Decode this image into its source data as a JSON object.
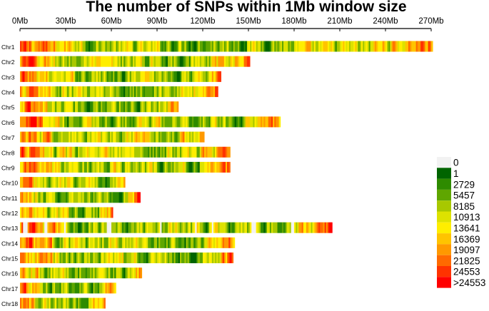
{
  "chart_data": {
    "type": "heatmap",
    "title": "The number of SNPs within 1Mb window size",
    "x_unit": "Mb",
    "xlim": [
      0,
      270
    ],
    "x_ticks": [
      {
        "value": 0,
        "label": "0Mb"
      },
      {
        "value": 30,
        "label": "30Mb"
      },
      {
        "value": 60,
        "label": "60Mb"
      },
      {
        "value": 90,
        "label": "90Mb"
      },
      {
        "value": 120,
        "label": "120Mb"
      },
      {
        "value": 150,
        "label": "150Mb"
      },
      {
        "value": 180,
        "label": "180Mb"
      },
      {
        "value": 210,
        "label": "210Mb"
      },
      {
        "value": 240,
        "label": "240Mb"
      },
      {
        "value": 270,
        "label": "270Mb"
      }
    ],
    "window_size_mb": 1,
    "chromosomes": [
      {
        "name": "Chr1",
        "length_mb": 271
      },
      {
        "name": "Chr2",
        "length_mb": 151
      },
      {
        "name": "Chr3",
        "length_mb": 132
      },
      {
        "name": "Chr4",
        "length_mb": 130
      },
      {
        "name": "Chr5",
        "length_mb": 104
      },
      {
        "name": "Chr6",
        "length_mb": 171
      },
      {
        "name": "Chr7",
        "length_mb": 121
      },
      {
        "name": "Chr8",
        "length_mb": 138
      },
      {
        "name": "Chr9",
        "length_mb": 138
      },
      {
        "name": "Chr10",
        "length_mb": 69
      },
      {
        "name": "Chr11",
        "length_mb": 79
      },
      {
        "name": "Chr12",
        "length_mb": 61
      },
      {
        "name": "Chr13",
        "length_mb": 205
      },
      {
        "name": "Chr14",
        "length_mb": 141
      },
      {
        "name": "Chr15",
        "length_mb": 140
      },
      {
        "name": "Chr16",
        "length_mb": 80
      },
      {
        "name": "Chr17",
        "length_mb": 63
      },
      {
        "name": "Chr18",
        "length_mb": 56
      }
    ],
    "gap_windows": {
      "Chr13": [
        2,
        3,
        4,
        16,
        17,
        29,
        57,
        58,
        59,
        92,
        115,
        126,
        152,
        153,
        154,
        178,
        179
      ]
    },
    "legend": {
      "labels": [
        "0",
        "1",
        "2729",
        "5457",
        "8185",
        "10913",
        "13641",
        "16369",
        "19097",
        "21825",
        "24553",
        ">24553"
      ],
      "colors": [
        "#f2f2f2",
        "#006400",
        "#2e8b00",
        "#5fa600",
        "#a8c800",
        "#dde200",
        "#ffee00",
        "#ffc400",
        "#ff9900",
        "#ff6a00",
        "#ff3300",
        "#ff0000"
      ]
    }
  }
}
